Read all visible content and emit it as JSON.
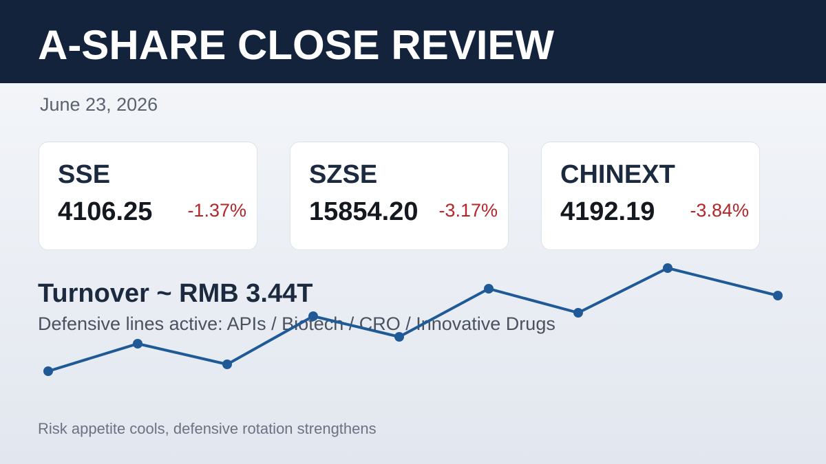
{
  "header": {
    "title": "A-SHARE CLOSE REVIEW"
  },
  "date": "June 23, 2026",
  "cards": [
    {
      "name": "SSE",
      "value": "4106.25",
      "change": "-1.37%"
    },
    {
      "name": "SZSE",
      "value": "15854.20",
      "change": "-3.17%"
    },
    {
      "name": "CHINEXT",
      "value": "4192.19",
      "change": "-3.84%"
    }
  ],
  "turnover": "Turnover ~ RMB 3.44T",
  "sectors": "Defensive lines active: APIs / Biotech / CRO / Innovative Drugs",
  "footer": "Risk appetite cools, defensive rotation strengthens"
}
